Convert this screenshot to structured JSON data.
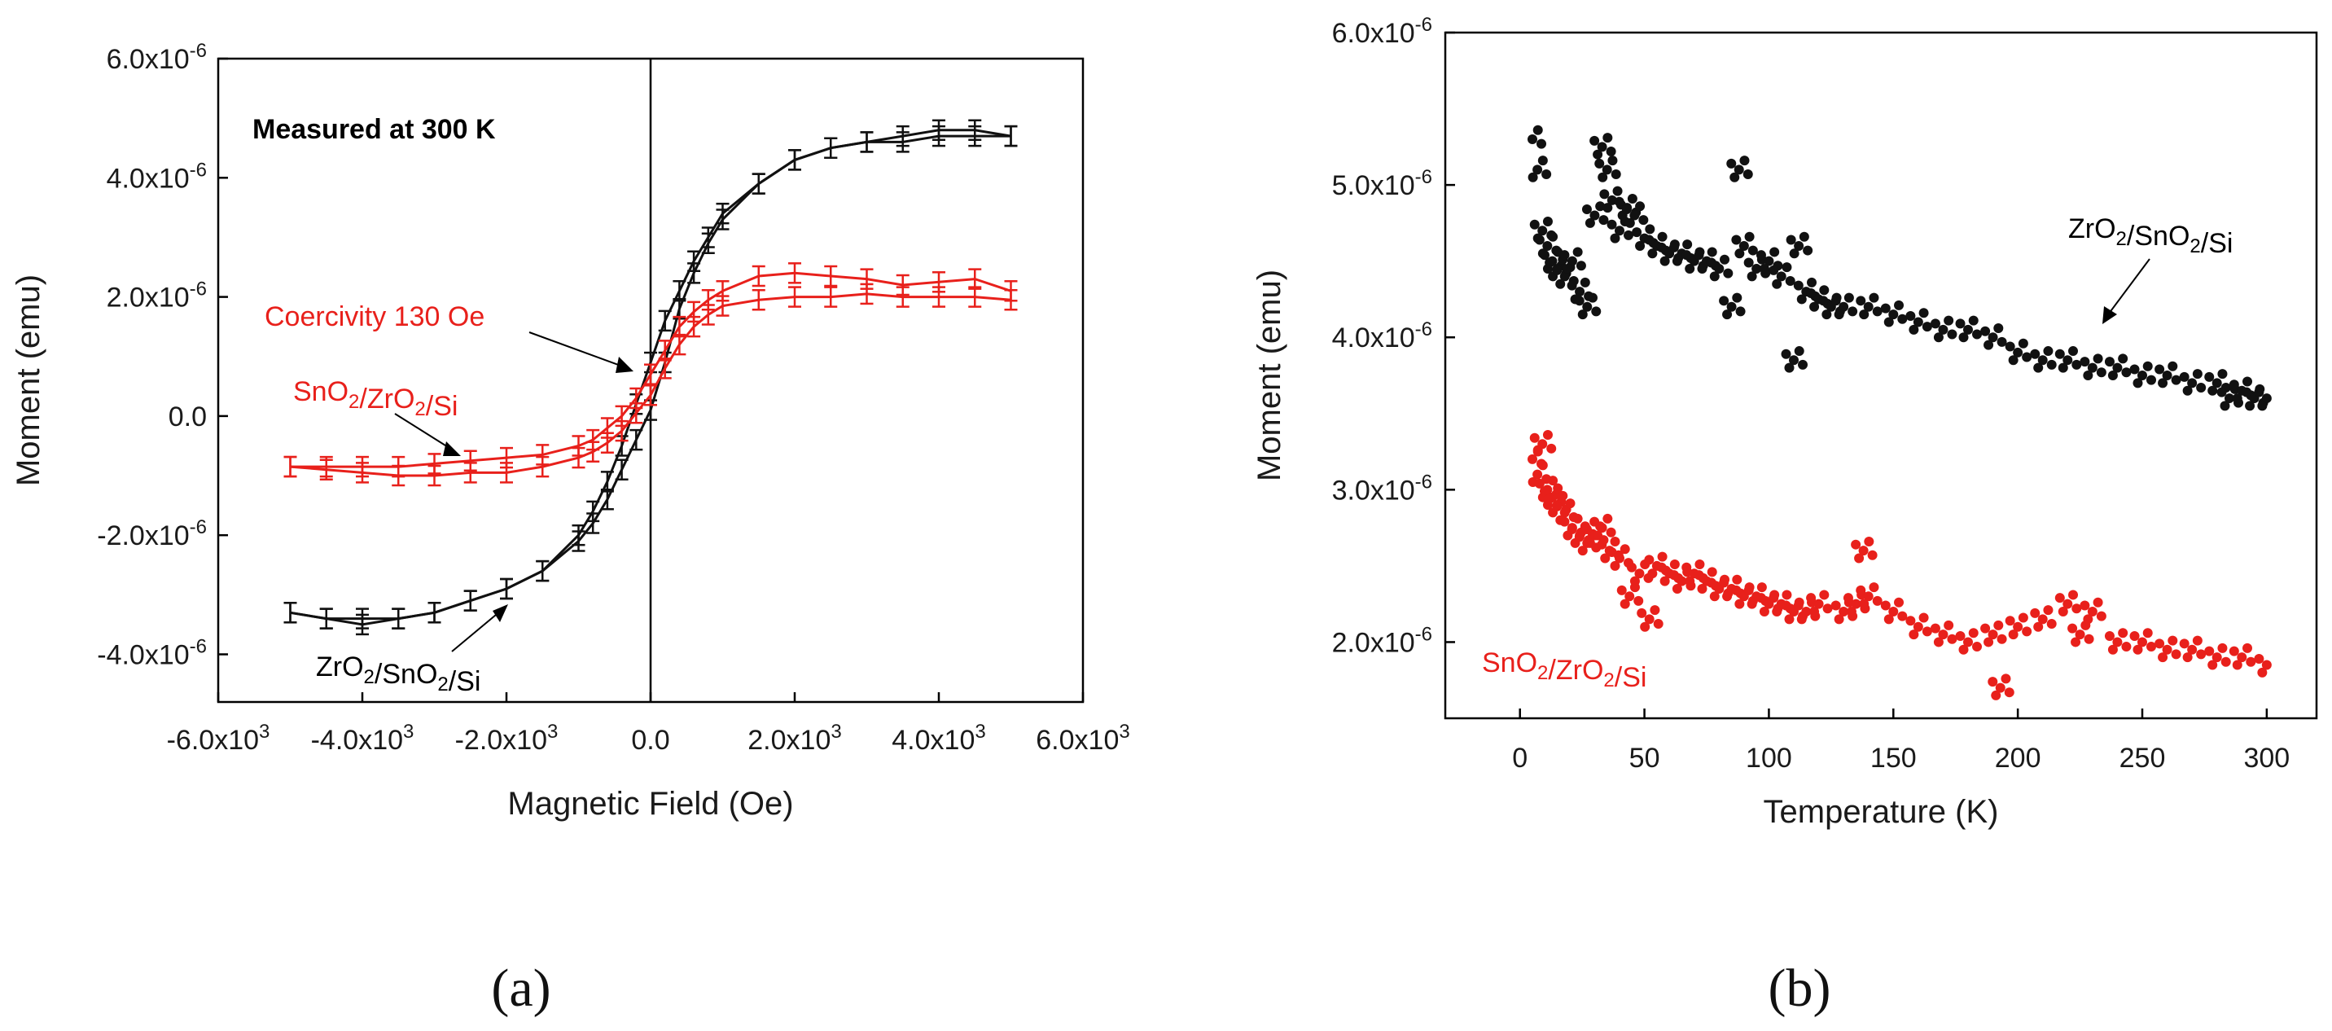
{
  "colors": {
    "black_series": "#111111",
    "red_series": "#e8201b",
    "axis": "#000000"
  },
  "panel_labels": {
    "a": "(a)",
    "b": "(b)"
  },
  "chart_data": [
    {
      "type": "line",
      "panel": "(a)",
      "xlabel": "Magnetic Field (Oe)",
      "ylabel": "Moment (emu)",
      "xlim": [
        -6000,
        6000
      ],
      "ylim": [
        -4.8e-06,
        6e-06
      ],
      "xticks": [
        {
          "v": -6000,
          "m": "-6.0x10",
          "e": "3"
        },
        {
          "v": -4000,
          "m": "-4.0x10",
          "e": "3"
        },
        {
          "v": -2000,
          "m": "-2.0x10",
          "e": "3"
        },
        {
          "v": 0,
          "m": "0.0",
          "e": ""
        },
        {
          "v": 2000,
          "m": "2.0x10",
          "e": "3"
        },
        {
          "v": 4000,
          "m": "4.0x10",
          "e": "3"
        },
        {
          "v": 6000,
          "m": "6.0x10",
          "e": "3"
        }
      ],
      "yticks": [
        {
          "v": -4e-06,
          "m": "-4.0x10",
          "e": "-6"
        },
        {
          "v": -2e-06,
          "m": "-2.0x10",
          "e": "-6"
        },
        {
          "v": 0,
          "m": "0.0",
          "e": ""
        },
        {
          "v": 2e-06,
          "m": "2.0x10",
          "e": "-6"
        },
        {
          "v": 4e-06,
          "m": "4.0x10",
          "e": "-6"
        },
        {
          "v": 6e-06,
          "m": "6.0x10",
          "e": "-6"
        }
      ],
      "annotations": {
        "title": "Measured at 300 K",
        "coercivity": "Coercivity 130 Oe"
      },
      "series": [
        {
          "name": "ZrO2/SnO2/Si",
          "color": "#111111",
          "label_parts": [
            [
              "ZrO",
              "2"
            ],
            [
              "/SnO",
              "2"
            ],
            [
              "/Si",
              ""
            ]
          ],
          "branches": [
            {
              "x": [
                -5000,
                -4500,
                -4000,
                -3500,
                -3000,
                -2500,
                -2000,
                -1500,
                -1000,
                -800,
                -600,
                -400,
                -200,
                0,
                200,
                400,
                600,
                800,
                1000,
                1500,
                2000,
                2500,
                3000,
                3500,
                4000,
                4500,
                5000
              ],
              "y": [
                -3.3,
                -3.4,
                -3.5,
                -3.4,
                -3.3,
                -3.1,
                -2.9,
                -2.6,
                -2.1,
                -1.8,
                -1.4,
                -0.9,
                -0.4,
                0.1,
                0.9,
                1.8,
                2.4,
                2.9,
                3.3,
                3.9,
                4.3,
                4.5,
                4.6,
                4.7,
                4.8,
                4.8,
                4.7
              ]
            },
            {
              "x": [
                5000,
                4500,
                4000,
                3500,
                3000,
                2500,
                2000,
                1500,
                1000,
                800,
                600,
                400,
                200,
                0,
                -200,
                -400,
                -600,
                -800,
                -1000,
                -1500,
                -2000,
                -2500,
                -3000,
                -3500,
                -4000,
                -4500,
                -5000
              ],
              "y": [
                4.7,
                4.7,
                4.7,
                4.6,
                4.6,
                4.5,
                4.3,
                3.9,
                3.4,
                3.0,
                2.6,
                2.1,
                1.6,
                0.9,
                0.2,
                -0.5,
                -1.1,
                -1.6,
                -2.0,
                -2.6,
                -2.9,
                -3.1,
                -3.3,
                -3.4,
                -3.4,
                -3.4,
                -3.3
              ]
            }
          ],
          "unit_scale": 1e-06
        },
        {
          "name": "SnO2/ZrO2/Si",
          "color": "#e8201b",
          "label_parts": [
            [
              "SnO",
              "2"
            ],
            [
              "/ZrO",
              "2"
            ],
            [
              "/Si",
              ""
            ]
          ],
          "branches": [
            {
              "x": [
                -5000,
                -4500,
                -4000,
                -3500,
                -3000,
                -2500,
                -2000,
                -1500,
                -1000,
                -800,
                -600,
                -400,
                -200,
                0,
                200,
                400,
                600,
                800,
                1000,
                1500,
                2000,
                2500,
                3000,
                3500,
                4000,
                4500,
                5000
              ],
              "y": [
                -0.85,
                -0.9,
                -0.95,
                -1.0,
                -1.0,
                -0.95,
                -0.95,
                -0.85,
                -0.7,
                -0.6,
                -0.45,
                -0.25,
                0.05,
                0.35,
                0.8,
                1.2,
                1.5,
                1.7,
                1.85,
                1.95,
                2.0,
                2.0,
                2.05,
                2.0,
                2.0,
                2.0,
                1.95
              ]
            },
            {
              "x": [
                5000,
                4500,
                4000,
                3500,
                3000,
                2500,
                2000,
                1500,
                1000,
                800,
                600,
                400,
                200,
                0,
                -200,
                -400,
                -600,
                -800,
                -1000,
                -1500,
                -2000,
                -2500,
                -3000,
                -3500,
                -4000,
                -4500,
                -5000
              ],
              "y": [
                2.1,
                2.3,
                2.25,
                2.2,
                2.3,
                2.35,
                2.4,
                2.35,
                2.1,
                1.95,
                1.75,
                1.5,
                1.1,
                0.7,
                0.3,
                0.0,
                -0.2,
                -0.4,
                -0.5,
                -0.65,
                -0.7,
                -0.75,
                -0.8,
                -0.85,
                -0.85,
                -0.85,
                -0.85
              ]
            }
          ],
          "unit_scale": 1e-06
        }
      ]
    },
    {
      "type": "scatter",
      "panel": "(b)",
      "xlabel": "Temperature (K)",
      "ylabel": "Moment (emu)",
      "xlim": [
        -30,
        320
      ],
      "ylim": [
        1.5e-06,
        6e-06
      ],
      "xticks": [
        {
          "v": 0,
          "m": "0",
          "e": ""
        },
        {
          "v": 50,
          "m": "50",
          "e": ""
        },
        {
          "v": 100,
          "m": "100",
          "e": ""
        },
        {
          "v": 150,
          "m": "150",
          "e": ""
        },
        {
          "v": 200,
          "m": "200",
          "e": ""
        },
        {
          "v": 250,
          "m": "250",
          "e": ""
        },
        {
          "v": 300,
          "m": "300",
          "e": ""
        }
      ],
      "yticks": [
        {
          "v": 2e-06,
          "m": "2.0x10",
          "e": "-6"
        },
        {
          "v": 3e-06,
          "m": "3.0x10",
          "e": "-6"
        },
        {
          "v": 4e-06,
          "m": "4.0x10",
          "e": "-6"
        },
        {
          "v": 5e-06,
          "m": "5.0x10",
          "e": "-6"
        },
        {
          "v": 6e-06,
          "m": "6.0x10",
          "e": "-6"
        }
      ],
      "series": [
        {
          "name": "ZrO2/SnO2/Si",
          "color": "#111111",
          "label_parts": [
            [
              "ZrO",
              "2"
            ],
            [
              "/SnO",
              "2"
            ],
            [
              "/Si",
              ""
            ]
          ],
          "x": [
            5,
            7,
            9,
            11,
            13,
            15,
            18,
            21,
            24,
            27,
            30,
            33,
            35,
            37,
            40,
            43,
            46,
            50,
            55,
            60,
            65,
            70,
            75,
            80,
            85,
            88,
            90,
            95,
            100,
            105,
            110,
            112,
            115,
            120,
            125,
            130,
            140,
            150,
            160,
            170,
            180,
            190,
            200,
            210,
            220,
            230,
            240,
            250,
            260,
            270,
            280,
            285,
            290,
            295,
            300
          ],
          "y": [
            5.3,
            5.1,
            4.7,
            4.6,
            4.5,
            4.45,
            4.4,
            4.5,
            4.3,
            4.2,
            4.8,
            5.25,
            5.1,
            4.9,
            4.7,
            4.85,
            4.8,
            4.65,
            4.6,
            4.55,
            4.55,
            4.5,
            4.5,
            4.45,
            4.2,
            5.1,
            4.6,
            4.45,
            4.5,
            4.4,
            3.85,
            4.6,
            4.3,
            4.25,
            4.2,
            4.2,
            4.2,
            4.15,
            4.1,
            4.05,
            4.05,
            4.0,
            3.9,
            3.85,
            3.85,
            3.8,
            3.8,
            3.75,
            3.75,
            3.7,
            3.7,
            3.6,
            3.65,
            3.6,
            3.6
          ],
          "unit_scale": 1e-06
        },
        {
          "name": "SnO2/ZrO2/Si",
          "color": "#e8201b",
          "label_parts": [
            [
              "SnO",
              "2"
            ],
            [
              "/ZrO",
              "2"
            ],
            [
              "/Si",
              ""
            ]
          ],
          "x": [
            5,
            7,
            9,
            11,
            13,
            15,
            18,
            21,
            24,
            27,
            30,
            33,
            36,
            40,
            44,
            48,
            52,
            55,
            60,
            65,
            70,
            75,
            80,
            85,
            90,
            95,
            100,
            105,
            110,
            115,
            120,
            130,
            135,
            138,
            140,
            150,
            160,
            170,
            180,
            190,
            193,
            200,
            210,
            220,
            225,
            230,
            240,
            250,
            260,
            270,
            280,
            290,
            300
          ],
          "y": [
            3.2,
            3.1,
            3.3,
            3.0,
            2.95,
            2.9,
            2.85,
            2.75,
            2.7,
            2.65,
            2.7,
            2.75,
            2.6,
            2.55,
            2.3,
            2.45,
            2.15,
            2.5,
            2.45,
            2.4,
            2.45,
            2.4,
            2.35,
            2.35,
            2.3,
            2.3,
            2.25,
            2.25,
            2.2,
            2.2,
            2.25,
            2.2,
            2.25,
            2.6,
            2.3,
            2.2,
            2.1,
            2.05,
            2.0,
            2.05,
            1.7,
            2.1,
            2.15,
            2.25,
            2.05,
            2.2,
            2.0,
            2.0,
            1.95,
            1.95,
            1.9,
            1.9,
            1.85
          ],
          "unit_scale": 1e-06
        }
      ]
    }
  ]
}
